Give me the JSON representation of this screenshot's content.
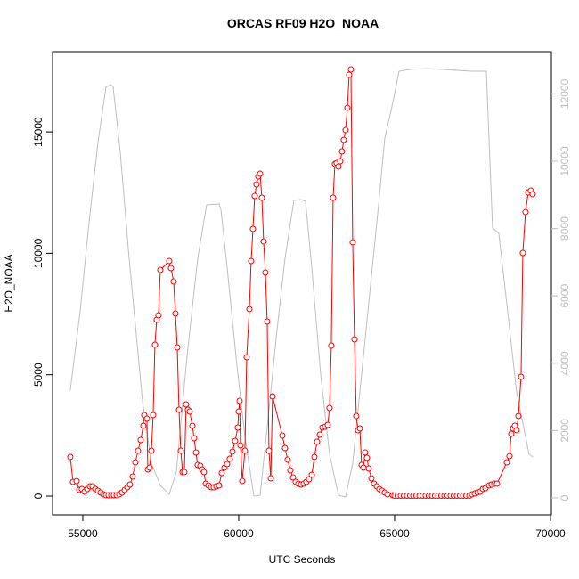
{
  "chart_data": {
    "type": "line",
    "title": "ORCAS RF09 H2O_NOAA",
    "x_label": "UTC Seconds",
    "y_label": "H2O_NOAA",
    "xlim": [
      54030,
      70030
    ],
    "ylim": [
      -770,
      18305
    ],
    "y2lim": [
      -503,
      13254
    ],
    "xticks": [
      55000,
      60000,
      65000,
      70000
    ],
    "yticks": [
      0,
      5000,
      10000,
      15000
    ],
    "y2ticks": [
      0,
      2000,
      4000,
      6000,
      8000,
      10000,
      12000
    ],
    "series": [
      {
        "color": "#bebebe",
        "axis": "y2",
        "marker": "none",
        "x": [
          54600,
          54914,
          55200,
          55486,
          55743,
          55886,
          55971,
          56200,
          56486,
          56914,
          57200,
          57486,
          57771,
          58000,
          58343,
          58686,
          58971,
          59371,
          59429,
          59629,
          59943,
          60200,
          60486,
          60686,
          60914,
          61200,
          61486,
          61771,
          62000,
          62143,
          62343,
          62629,
          62914,
          63200,
          63429,
          63657,
          64057,
          64486,
          64686,
          64914,
          65143,
          65486,
          66057,
          67486,
          67943,
          68143,
          68343,
          68629,
          68914,
          69200,
          69314,
          69429
        ],
        "values": [
          3201,
          5529,
          8175,
          10556,
          12196,
          12275,
          12222,
          10291,
          7116,
          2884,
          1032,
          370,
          106,
          767,
          4206,
          7116,
          8704,
          8730,
          8571,
          6852,
          3942,
          1825,
          53,
          79,
          2090,
          4735,
          7116,
          8836,
          8862,
          8810,
          6852,
          3677,
          1296,
          79,
          26,
          1032,
          4735,
          8704,
          10688,
          11614,
          12672,
          12725,
          12751,
          12672,
          12672,
          8016,
          7857,
          5529,
          3148,
          1825,
          1296,
          1217
        ]
      },
      {
        "color": "#ff0000",
        "marker": "circle",
        "x": [
          54600,
          54686,
          54800,
          54886,
          54971,
          55057,
          55143,
          55229,
          55314,
          55400,
          55486,
          55571,
          55657,
          55743,
          55829,
          55914,
          56000,
          56086,
          56171,
          56257,
          56343,
          56429,
          56514,
          56600,
          56686,
          56771,
          56857,
          56943,
          56971,
          57057,
          57086,
          57143,
          57200,
          57257,
          57314,
          57371,
          57429,
          57486,
          57771,
          57829,
          57914,
          57971,
          58029,
          58086,
          58143,
          58200,
          58257,
          58314,
          58371,
          58429,
          58514,
          58571,
          58629,
          58686,
          58771,
          58829,
          58886,
          58943,
          59029,
          59114,
          59200,
          59286,
          59371,
          59457,
          59543,
          59629,
          59714,
          59800,
          59886,
          59971,
          60000,
          60029,
          60057,
          60114,
          60200,
          60257,
          60343,
          60400,
          60457,
          60514,
          60571,
          60629,
          60686,
          60743,
          60800,
          60857,
          60914,
          60971,
          61029,
          61086,
          61400,
          61486,
          61571,
          61657,
          61743,
          61829,
          61914,
          62000,
          62086,
          62171,
          62257,
          62343,
          62429,
          62514,
          62600,
          62686,
          62771,
          62857,
          62914,
          62971,
          63029,
          63086,
          63143,
          63200,
          63257,
          63314,
          63371,
          63429,
          63486,
          63543,
          63600,
          63657,
          63714,
          63771,
          63829,
          63886,
          63943,
          64000,
          64057,
          64114,
          64171,
          64257,
          64343,
          64429,
          64514,
          64600,
          64686,
          64771,
          64943,
          65000,
          65100,
          65200,
          65300,
          65400,
          65500,
          65600,
          65700,
          65800,
          65900,
          66000,
          66100,
          66200,
          66300,
          66400,
          66500,
          66600,
          66700,
          66800,
          66900,
          67000,
          67100,
          67200,
          67300,
          67400,
          67486,
          67571,
          67657,
          67743,
          67829,
          67914,
          68029,
          68114,
          68200,
          68286,
          68600,
          68686,
          68743,
          68800,
          68857,
          68914,
          68971,
          69057,
          69114,
          69200,
          69286,
          69371,
          69429
        ],
        "values": [
          1614,
          587,
          620,
          257,
          293,
          183,
          293,
          403,
          403,
          293,
          220,
          147,
          73,
          37,
          37,
          37,
          37,
          37,
          73,
          147,
          257,
          367,
          477,
          807,
          1394,
          1870,
          2311,
          2898,
          3338,
          3191,
          1100,
          1174,
          1870,
          3338,
          6235,
          7263,
          7446,
          9317,
          9684,
          9390,
          8840,
          7519,
          6126,
          3558,
          1870,
          990,
          990,
          3778,
          3558,
          3485,
          2898,
          2384,
          1797,
          1284,
          1247,
          1100,
          990,
          514,
          440,
          367,
          367,
          403,
          440,
          954,
          1174,
          1320,
          1541,
          1834,
          2274,
          2824,
          3485,
          3925,
          2091,
          624,
          1870,
          5722,
          7703,
          9684,
          11004,
          12361,
          12838,
          13168,
          13278,
          12288,
          10491,
          9207,
          7189,
          1870,
          734,
          4108,
          2494,
          1981,
          1504,
          1064,
          770,
          587,
          514,
          477,
          514,
          587,
          697,
          880,
          1614,
          2237,
          2531,
          2824,
          2861,
          2934,
          3631,
          6199,
          12288,
          13681,
          13718,
          13571,
          13791,
          14195,
          14672,
          15075,
          15992,
          17350,
          17570,
          10454,
          6456,
          3301,
          2714,
          2787,
          1284,
          1174,
          1797,
          1577,
          1137,
          734,
          514,
          403,
          293,
          220,
          147,
          73,
          37,
          20,
          20,
          20,
          20,
          20,
          20,
          20,
          20,
          20,
          20,
          20,
          20,
          20,
          20,
          20,
          20,
          20,
          20,
          20,
          20,
          20,
          20,
          20,
          20,
          20,
          73,
          110,
          147,
          183,
          293,
          330,
          440,
          477,
          514,
          514,
          1394,
          1650,
          2567,
          2787,
          2898,
          2714,
          3301,
          4915,
          10014,
          11700,
          12507,
          12581,
          12434
        ]
      }
    ]
  }
}
